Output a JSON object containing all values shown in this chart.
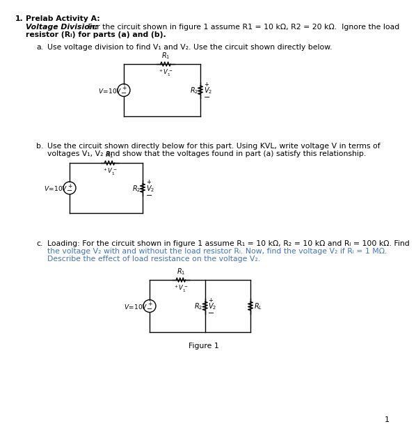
{
  "title_number": "1.",
  "title_text": "Prelab Activity A:",
  "intro_bold_italic": "Voltage Division:",
  "intro_rest_line1": " For the circuit shown in figure 1 assume R1 = 10 kΩ, R2 = 20 kΩ.  Ignore the load",
  "intro_line2": "resistor (Rₗ) for parts (a) and (b).",
  "part_a_label": "a.",
  "part_a_text": "Use voltage division to find V₁ and V₂. Use the circuit shown directly below.",
  "part_b_label": "b.",
  "part_b_line1": "Use the circuit shown directly below for this part. Using KVL, write voltage V in terms of",
  "part_b_line2": "voltages V₁, V₂ and show that the voltages found in part (a) satisfy this relationship.",
  "part_c_label": "c.",
  "part_c_line1": "Loading: For the circuit shown in figure 1 assume R₁ = 10 kΩ, R₂ = 10 kΩ and Rₗ = 100 kΩ. Find",
  "part_c_line2": "the voltage V₂ with and without the load resistor Rₗ. Now, find the voltage V₂ if Rₗ = 1 MΩ.",
  "part_c_line3": "Describe the effect of load resistance on the voltage V₂.",
  "figure_label": "Figure 1",
  "page_number": "1",
  "bg_color": "#ffffff",
  "text_color": "#000000",
  "highlight_color": "#4472C4"
}
